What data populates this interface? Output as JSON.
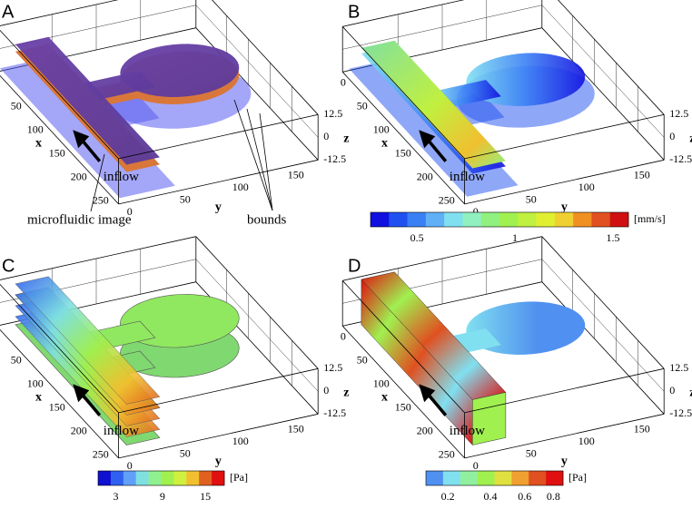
{
  "panels": [
    {
      "label": "A",
      "x_axis": "x",
      "y_axis": "y",
      "z_axis": "z",
      "x_ticks": [
        "0",
        "50",
        "100",
        "150",
        "200",
        "250"
      ],
      "y_ticks": [
        "0",
        "50",
        "100",
        "150"
      ],
      "z_ticks": [
        "12.5",
        "0",
        "-12.5"
      ],
      "inflow": "inflow",
      "annotations": [
        "microfluidic image",
        "bounds"
      ]
    },
    {
      "label": "B",
      "x_axis": "x",
      "y_axis": "y",
      "z_axis": "z",
      "x_ticks": [
        "0",
        "50",
        "100",
        "150",
        "200",
        "250"
      ],
      "y_ticks": [
        "0",
        "50",
        "100",
        "150"
      ],
      "z_ticks": [
        "12.5",
        "0",
        "-12.5"
      ],
      "inflow": "inflow",
      "colorbar": {
        "unit": "[mm/s]",
        "ticks": [
          "0.5",
          "1",
          "1.5"
        ],
        "colors": [
          "#1010e0",
          "#2050f0",
          "#3a80f5",
          "#60b0f8",
          "#80e0f0",
          "#90f0c0",
          "#90f080",
          "#a0f050",
          "#c0f040",
          "#e0f030",
          "#f0d030",
          "#f09020",
          "#e05020",
          "#d01010"
        ]
      }
    },
    {
      "label": "C",
      "x_axis": "x",
      "y_axis": "y",
      "z_axis": "z",
      "x_ticks": [
        "0",
        "50",
        "100",
        "150",
        "200",
        "250"
      ],
      "y_ticks": [
        "0",
        "50",
        "100",
        "150"
      ],
      "z_ticks": [
        "12.5",
        "0",
        "-12.5"
      ],
      "inflow": "inflow",
      "colorbar": {
        "unit": "[Pa]",
        "ticks": [
          "3",
          "9",
          "15"
        ],
        "colors": [
          "#1010d0",
          "#3060f0",
          "#60a0f8",
          "#80e0e0",
          "#90f090",
          "#a0f050",
          "#d0f040",
          "#f0c030",
          "#e06020",
          "#e01010"
        ]
      }
    },
    {
      "label": "D",
      "x_axis": "x",
      "y_axis": "y",
      "z_axis": "z",
      "x_ticks": [
        "0",
        "50",
        "100",
        "150",
        "200",
        "250"
      ],
      "y_ticks": [
        "0",
        "50",
        "100",
        "150"
      ],
      "z_ticks": [
        "12.5",
        "0",
        "-12.5"
      ],
      "inflow": "inflow",
      "colorbar": {
        "unit": "[Pa]",
        "ticks": [
          "0.2",
          "0.4",
          "0.6",
          "0.8"
        ],
        "colors": [
          "#5090f0",
          "#80e0f0",
          "#90f0a0",
          "#a0f050",
          "#e0e040",
          "#f0a030",
          "#e05020",
          "#e01010"
        ]
      }
    }
  ]
}
